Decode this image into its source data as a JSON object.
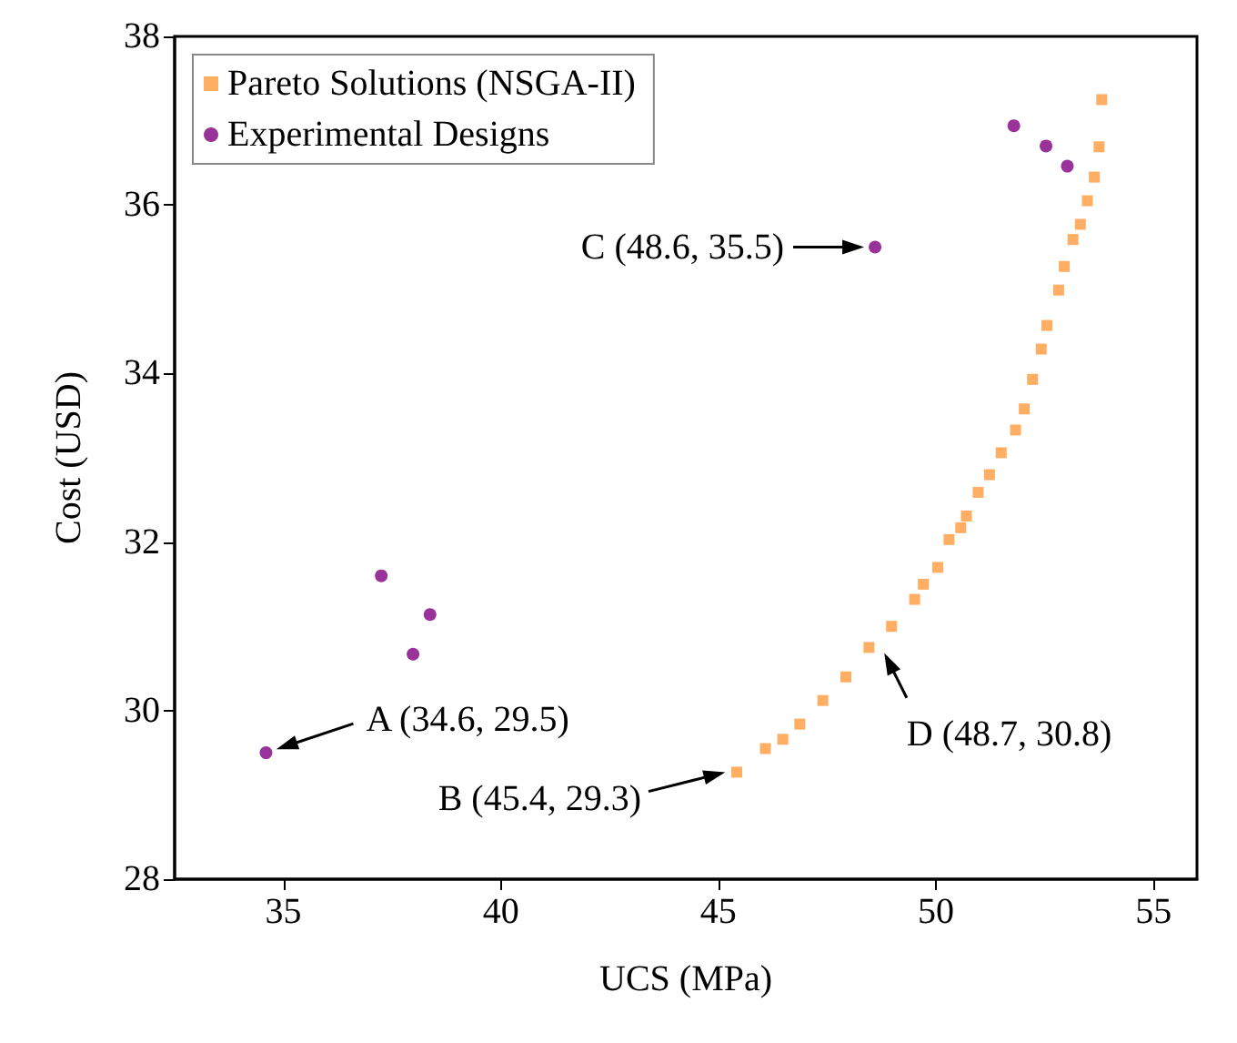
{
  "chart_data": {
    "type": "scatter",
    "xlabel": "UCS (MPa)",
    "ylabel": "Cost (USD)",
    "xlim": [
      32.5,
      56
    ],
    "xticks": [
      35,
      40,
      45,
      50,
      55
    ],
    "ylim": [
      28,
      38
    ],
    "yticks": [
      28,
      30,
      32,
      34,
      36,
      38
    ],
    "grid": false,
    "legend": "top left",
    "series": [
      {
        "name": "Pareto Solutions (NSGA-II)",
        "color": "#ff9a3c",
        "marker": "square",
        "x": [
          45.42,
          46.08,
          46.48,
          46.87,
          47.4,
          47.93,
          48.46,
          48.98,
          49.51,
          49.71,
          50.04,
          50.3,
          50.57,
          50.7,
          50.97,
          51.23,
          51.5,
          51.83,
          52.03,
          52.22,
          52.42,
          52.55,
          52.82,
          52.95,
          53.15,
          53.32,
          53.48,
          53.64,
          53.75,
          53.81
        ],
        "values": [
          29.27,
          29.55,
          29.66,
          29.84,
          30.12,
          30.4,
          30.75,
          31.0,
          31.32,
          31.5,
          31.7,
          32.03,
          32.17,
          32.31,
          32.59,
          32.8,
          33.06,
          33.33,
          33.58,
          33.93,
          34.29,
          34.57,
          34.99,
          35.27,
          35.59,
          35.77,
          36.05,
          36.33,
          36.69,
          37.25
        ]
      },
      {
        "name": "Experimental Designs",
        "color": "#800080",
        "marker": "circle",
        "x": [
          34.6,
          37.25,
          38.37,
          37.98,
          48.6,
          51.79,
          52.53,
          53.02
        ],
        "values": [
          29.5,
          31.6,
          31.14,
          30.67,
          35.5,
          36.94,
          36.7,
          36.46
        ]
      }
    ],
    "annotations": [
      {
        "text": "A (34.6, 29.5)",
        "x": 34.6,
        "y": 29.5
      },
      {
        "text": "B (45.4, 29.3)",
        "x": 45.4,
        "y": 29.3
      },
      {
        "text": "C (48.6, 35.5)",
        "x": 48.6,
        "y": 35.5
      },
      {
        "text": "D (48.7, 30.8)",
        "x": 48.7,
        "y": 30.8
      }
    ]
  }
}
